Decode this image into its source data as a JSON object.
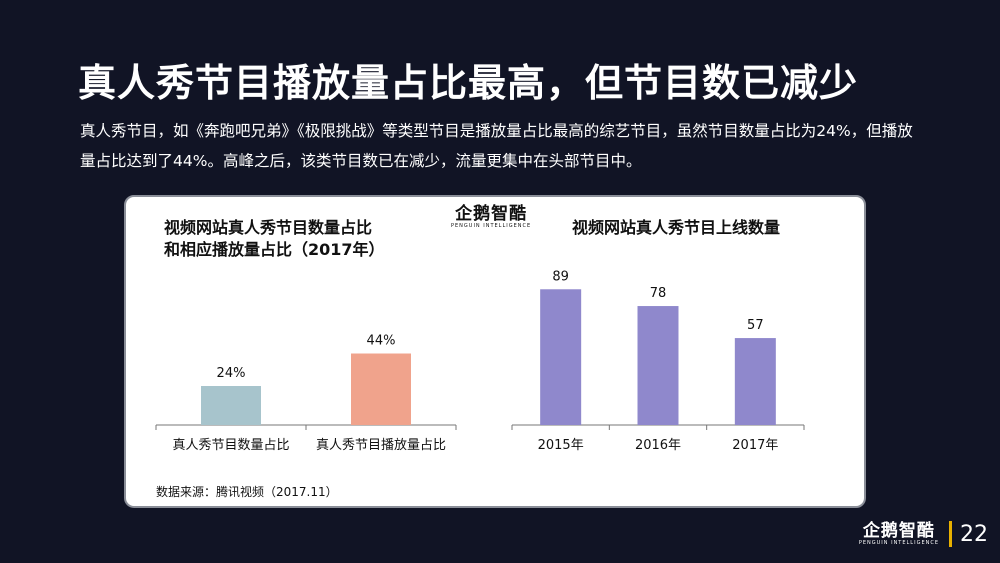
{
  "title": "真人秀节目播放量占比最高，但节目数已减少",
  "description": "真人秀节目，如《奔跑吧兄弟》《极限挑战》等类型节目是播放量占比最高的综艺节目，虽然节目数量占比为24%，但播放量占比达到了44%。高峰之后，该类节目数已在减少，流量更集中在头部节目中。",
  "logo": {
    "main": "企鹅智酷",
    "sub": "PENGUIN INTELLIGENCE"
  },
  "page_number": "22",
  "source": "数据来源：腾讯视频（2017.11）",
  "colors": {
    "background": "#111425",
    "accent": "#e8b000",
    "bar_count": "#a7c4cc",
    "bar_play": "#f0a38c",
    "bar_shows": "#8f88cc"
  },
  "chart_data": [
    {
      "type": "bar",
      "title": "视频网站真人秀节目数量占比和相应播放量占比（2017年）",
      "title_lines": [
        "视频网站真人秀节目数量占比",
        "和相应播放量占比（2017年）"
      ],
      "categories": [
        "真人秀节目数量占比",
        "真人秀节目播放量占比"
      ],
      "values": [
        24,
        44
      ],
      "value_labels": [
        "24%",
        "44%"
      ],
      "bar_colors": [
        "#a7c4cc",
        "#f0a38c"
      ],
      "xlabel": "",
      "ylabel": "",
      "ylim": [
        0,
        80
      ]
    },
    {
      "type": "bar",
      "title": "视频网站真人秀节目上线数量",
      "categories": [
        "2015年",
        "2016年",
        "2017年"
      ],
      "values": [
        89,
        78,
        57
      ],
      "value_labels": [
        "89",
        "78",
        "57"
      ],
      "bar_colors": [
        "#8f88cc",
        "#8f88cc",
        "#8f88cc"
      ],
      "xlabel": "",
      "ylabel": "",
      "ylim": [
        0,
        120
      ]
    }
  ]
}
